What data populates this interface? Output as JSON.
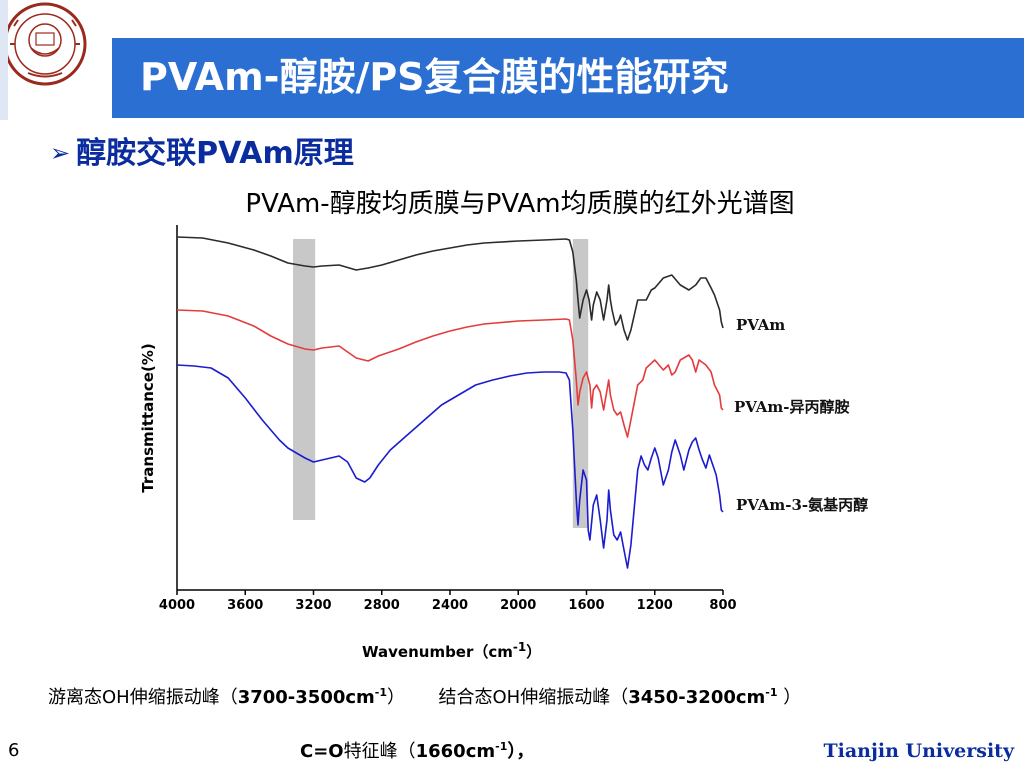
{
  "slide": {
    "title": "PVAm-醇胺/PS复合膜的性能研究",
    "bullet": "醇胺交联PVAm原理",
    "bullet_marker": "➢",
    "page_number": "6",
    "footer": "Tianjin University"
  },
  "logo": {
    "text_ring": "TIANJIN UNIVERSITY (PEIYANG UNIVERSITY)",
    "center_text": "北洋",
    "year": "1895",
    "bottom_text": "天津大学",
    "color": "#9b2a1e"
  },
  "chart_data": {
    "type": "line",
    "title": "PVAm-醇胺均质膜与PVAm均质膜的红外光谱图",
    "xlabel_main": "Wavenumber（cm",
    "xlabel_sup": "-1",
    "xlabel_end": "）",
    "ylabel": "Transmittance(%)",
    "xlim": [
      4000,
      800
    ],
    "x_reversed": true,
    "x_ticks": [
      "4000",
      "3600",
      "3200",
      "2800",
      "2400",
      "2000",
      "1600",
      "1200",
      "800"
    ],
    "x_tick_values": [
      4000,
      3600,
      3200,
      2800,
      2400,
      2000,
      1600,
      1200,
      800
    ],
    "highlight_bands": [
      [
        3320,
        3190
      ],
      [
        1680,
        1590
      ]
    ],
    "highlight_color": "#c8c8c8",
    "series": [
      {
        "name": "PVAm",
        "color": "#2b2b2b",
        "points": [
          [
            4000,
            237
          ],
          [
            3850,
            238
          ],
          [
            3700,
            243
          ],
          [
            3550,
            250
          ],
          [
            3450,
            256
          ],
          [
            3350,
            263
          ],
          [
            3250,
            266
          ],
          [
            3200,
            267
          ],
          [
            3150,
            266
          ],
          [
            3050,
            265
          ],
          [
            2950,
            270
          ],
          [
            2880,
            268
          ],
          [
            2800,
            265
          ],
          [
            2700,
            260
          ],
          [
            2600,
            255
          ],
          [
            2500,
            251
          ],
          [
            2400,
            248
          ],
          [
            2300,
            245
          ],
          [
            2200,
            243
          ],
          [
            2000,
            241
          ],
          [
            1850,
            240
          ],
          [
            1720,
            239
          ],
          [
            1700,
            240
          ],
          [
            1680,
            252
          ],
          [
            1660,
            280
          ],
          [
            1650,
            300
          ],
          [
            1640,
            318
          ],
          [
            1620,
            300
          ],
          [
            1600,
            290
          ],
          [
            1585,
            300
          ],
          [
            1570,
            320
          ],
          [
            1560,
            305
          ],
          [
            1540,
            292
          ],
          [
            1520,
            300
          ],
          [
            1500,
            320
          ],
          [
            1480,
            300
          ],
          [
            1470,
            285
          ],
          [
            1460,
            300
          ],
          [
            1450,
            310
          ],
          [
            1430,
            325
          ],
          [
            1410,
            320
          ],
          [
            1400,
            315
          ],
          [
            1380,
            330
          ],
          [
            1360,
            340
          ],
          [
            1340,
            330
          ],
          [
            1300,
            300
          ],
          [
            1250,
            300
          ],
          [
            1220,
            290
          ],
          [
            1200,
            288
          ],
          [
            1150,
            278
          ],
          [
            1100,
            275
          ],
          [
            1050,
            285
          ],
          [
            1000,
            290
          ],
          [
            960,
            285
          ],
          [
            930,
            278
          ],
          [
            900,
            278
          ],
          [
            870,
            288
          ],
          [
            850,
            295
          ],
          [
            820,
            310
          ],
          [
            810,
            322
          ],
          [
            800,
            328
          ]
        ]
      },
      {
        "name": "PVAm-异丙醇胺",
        "color": "#e43c3c",
        "points": [
          [
            4000,
            310
          ],
          [
            3850,
            311
          ],
          [
            3700,
            316
          ],
          [
            3550,
            326
          ],
          [
            3450,
            336
          ],
          [
            3350,
            344
          ],
          [
            3250,
            349
          ],
          [
            3200,
            350
          ],
          [
            3150,
            348
          ],
          [
            3050,
            346
          ],
          [
            2950,
            358
          ],
          [
            2880,
            361
          ],
          [
            2820,
            356
          ],
          [
            2700,
            349
          ],
          [
            2600,
            342
          ],
          [
            2500,
            336
          ],
          [
            2400,
            331
          ],
          [
            2300,
            327
          ],
          [
            2200,
            324
          ],
          [
            2000,
            321
          ],
          [
            1850,
            320
          ],
          [
            1720,
            319
          ],
          [
            1700,
            320
          ],
          [
            1680,
            340
          ],
          [
            1660,
            380
          ],
          [
            1650,
            405
          ],
          [
            1640,
            392
          ],
          [
            1620,
            378
          ],
          [
            1600,
            372
          ],
          [
            1580,
            385
          ],
          [
            1570,
            408
          ],
          [
            1560,
            390
          ],
          [
            1540,
            385
          ],
          [
            1520,
            392
          ],
          [
            1500,
            410
          ],
          [
            1480,
            390
          ],
          [
            1470,
            380
          ],
          [
            1460,
            395
          ],
          [
            1440,
            410
          ],
          [
            1420,
            415
          ],
          [
            1400,
            412
          ],
          [
            1380,
            425
          ],
          [
            1360,
            437
          ],
          [
            1340,
            420
          ],
          [
            1300,
            385
          ],
          [
            1270,
            380
          ],
          [
            1250,
            368
          ],
          [
            1200,
            360
          ],
          [
            1150,
            370
          ],
          [
            1120,
            365
          ],
          [
            1100,
            375
          ],
          [
            1080,
            372
          ],
          [
            1050,
            360
          ],
          [
            1000,
            355
          ],
          [
            980,
            360
          ],
          [
            960,
            372
          ],
          [
            940,
            360
          ],
          [
            900,
            365
          ],
          [
            870,
            372
          ],
          [
            850,
            385
          ],
          [
            820,
            395
          ],
          [
            810,
            408
          ],
          [
            800,
            410
          ]
        ]
      },
      {
        "name": "PVAm-3-氨基丙醇",
        "color": "#1c1ccf",
        "points": [
          [
            4000,
            365
          ],
          [
            3900,
            366
          ],
          [
            3800,
            368
          ],
          [
            3700,
            378
          ],
          [
            3600,
            398
          ],
          [
            3500,
            420
          ],
          [
            3400,
            440
          ],
          [
            3350,
            448
          ],
          [
            3300,
            453
          ],
          [
            3250,
            458
          ],
          [
            3200,
            462
          ],
          [
            3150,
            460
          ],
          [
            3100,
            458
          ],
          [
            3050,
            456
          ],
          [
            3000,
            462
          ],
          [
            2950,
            478
          ],
          [
            2900,
            482
          ],
          [
            2870,
            478
          ],
          [
            2820,
            465
          ],
          [
            2750,
            450
          ],
          [
            2650,
            435
          ],
          [
            2550,
            420
          ],
          [
            2450,
            405
          ],
          [
            2350,
            395
          ],
          [
            2250,
            385
          ],
          [
            2150,
            380
          ],
          [
            2050,
            376
          ],
          [
            1950,
            373
          ],
          [
            1850,
            372
          ],
          [
            1760,
            372
          ],
          [
            1720,
            373
          ],
          [
            1700,
            380
          ],
          [
            1680,
            430
          ],
          [
            1660,
            500
          ],
          [
            1650,
            525
          ],
          [
            1640,
            500
          ],
          [
            1620,
            470
          ],
          [
            1600,
            480
          ],
          [
            1590,
            530
          ],
          [
            1580,
            540
          ],
          [
            1560,
            505
          ],
          [
            1540,
            495
          ],
          [
            1520,
            520
          ],
          [
            1500,
            548
          ],
          [
            1480,
            520
          ],
          [
            1470,
            490
          ],
          [
            1460,
            510
          ],
          [
            1440,
            535
          ],
          [
            1420,
            540
          ],
          [
            1400,
            532
          ],
          [
            1380,
            550
          ],
          [
            1360,
            568
          ],
          [
            1340,
            545
          ],
          [
            1300,
            470
          ],
          [
            1280,
            456
          ],
          [
            1260,
            465
          ],
          [
            1240,
            470
          ],
          [
            1220,
            458
          ],
          [
            1200,
            448
          ],
          [
            1180,
            458
          ],
          [
            1150,
            485
          ],
          [
            1120,
            470
          ],
          [
            1100,
            452
          ],
          [
            1080,
            440
          ],
          [
            1050,
            455
          ],
          [
            1030,
            470
          ],
          [
            1000,
            450
          ],
          [
            980,
            442
          ],
          [
            960,
            438
          ],
          [
            940,
            450
          ],
          [
            920,
            460
          ],
          [
            900,
            468
          ],
          [
            880,
            455
          ],
          [
            860,
            465
          ],
          [
            840,
            475
          ],
          [
            820,
            495
          ],
          [
            810,
            510
          ],
          [
            800,
            512
          ]
        ]
      }
    ]
  },
  "notes": {
    "line1_a": "游离态OH伸缩振动峰（",
    "line1_a_b": "3700-3500cm",
    "line1_a_sup": "-1",
    "line1_a_end": "）",
    "line1_b": "结合态OH伸缩振动峰（",
    "line1_b_b": "3450-3200cm",
    "line1_b_sup": "-1",
    "line1_b_end": " ）",
    "line2_b": "C=O",
    "line2": "特征峰（",
    "line2_b2": "1660cm",
    "line2_sup": "-1",
    "line2_end": "），"
  },
  "colors": {
    "title_bar": "#2a6fd1",
    "accent": "#0b2c9e"
  }
}
